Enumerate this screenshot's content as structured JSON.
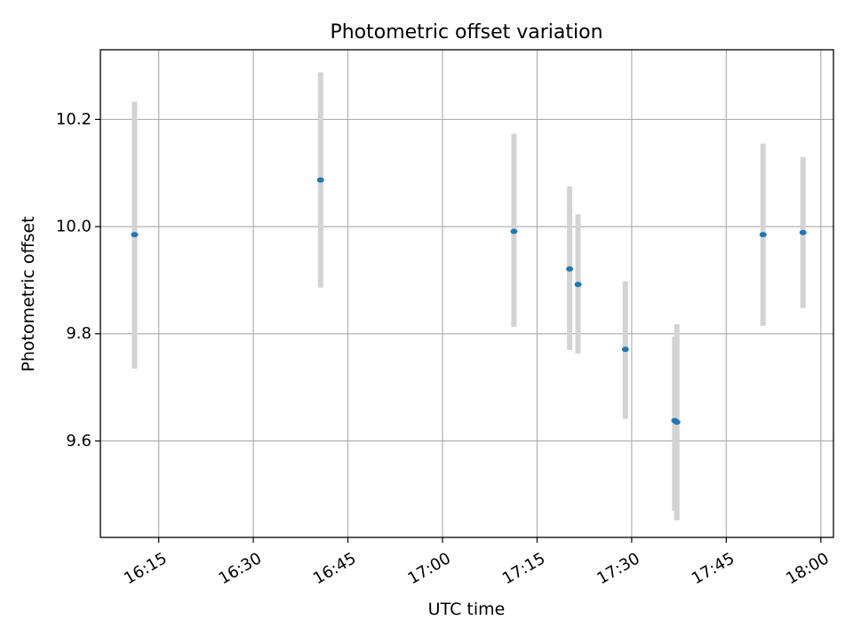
{
  "chart_data": {
    "type": "scatter",
    "title": "Photometric offset variation",
    "xlabel": "UTC time",
    "ylabel": "Photometric offset",
    "x_is_time": true,
    "xlim": [
      "16:05:45",
      "18:02:00"
    ],
    "ylim": [
      9.42,
      10.33
    ],
    "x_ticks": [
      "16:15",
      "16:30",
      "16:45",
      "17:00",
      "17:15",
      "17:30",
      "17:45",
      "18:00"
    ],
    "y_ticks": [
      9.6,
      9.8,
      10.0,
      10.2
    ],
    "y_tick_labels": [
      "9.6",
      "9.8",
      "10.0",
      "10.2"
    ],
    "grid": true,
    "errorbar_color": "#d3d3d3",
    "point_color": "#1f77b4",
    "points": [
      {
        "x": "16:11:10",
        "y": 9.985,
        "ylow": 9.735,
        "yhigh": 10.233
      },
      {
        "x": "16:40:40",
        "y": 10.087,
        "ylow": 9.886,
        "yhigh": 10.288
      },
      {
        "x": "17:11:20",
        "y": 9.991,
        "ylow": 9.813,
        "yhigh": 10.173
      },
      {
        "x": "17:20:10",
        "y": 9.921,
        "ylow": 9.77,
        "yhigh": 10.075
      },
      {
        "x": "17:21:30",
        "y": 9.892,
        "ylow": 9.763,
        "yhigh": 10.023
      },
      {
        "x": "17:29:00",
        "y": 9.771,
        "ylow": 9.641,
        "yhigh": 9.898
      },
      {
        "x": "17:36:50",
        "y": 9.638,
        "ylow": 9.47,
        "yhigh": 9.795
      },
      {
        "x": "17:37:10",
        "y": 9.635,
        "ylow": 9.452,
        "yhigh": 9.818
      },
      {
        "x": "17:50:50",
        "y": 9.985,
        "ylow": 9.815,
        "yhigh": 10.155
      },
      {
        "x": "17:57:10",
        "y": 9.989,
        "ylow": 9.848,
        "yhigh": 10.13
      }
    ]
  }
}
